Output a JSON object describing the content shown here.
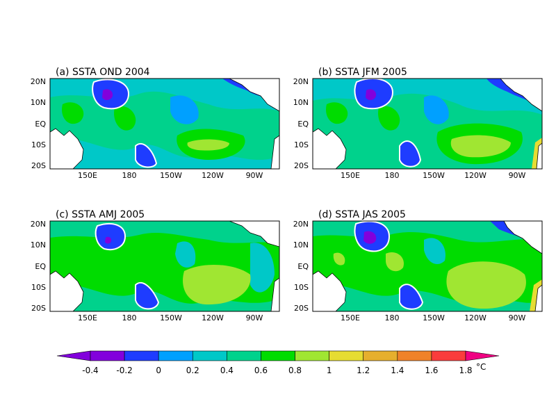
{
  "panels": [
    {
      "title": "(a) SSTA OND 2004"
    },
    {
      "title": "(b) SSTA JFM 2005"
    },
    {
      "title": "(c) SSTA AMJ 2005"
    },
    {
      "title": "(d) SSTA JAS 2005"
    }
  ],
  "axes": {
    "lat_labels": [
      "20N",
      "10N",
      "EQ",
      "10S",
      "20S"
    ],
    "lon_labels": [
      "150E",
      "180",
      "150W",
      "120W",
      "90W"
    ]
  },
  "colorbar": {
    "unit": "°C",
    "tick_labels": [
      "-0.4",
      "-0.2",
      "0",
      "0.2",
      "0.4",
      "0.6",
      "0.8",
      "1",
      "1.2",
      "1.4",
      "1.6",
      "1.8"
    ],
    "colors": [
      "#8200dc",
      "#1e3cff",
      "#00a0ff",
      "#00c8c8",
      "#00d28c",
      "#00dc00",
      "#a0e632",
      "#e6dc32",
      "#e6af2d",
      "#f08228",
      "#fa3c3c",
      "#f00082"
    ]
  },
  "palette": {
    "cool": "#00a0ff",
    "mid": "#00dc00",
    "warm": "#a0e632",
    "neg": "#1e3cff",
    "strong_neg": "#8200dc",
    "zero_contour": "#ffffff",
    "land": "#ffffff",
    "coast": "#000000"
  }
}
